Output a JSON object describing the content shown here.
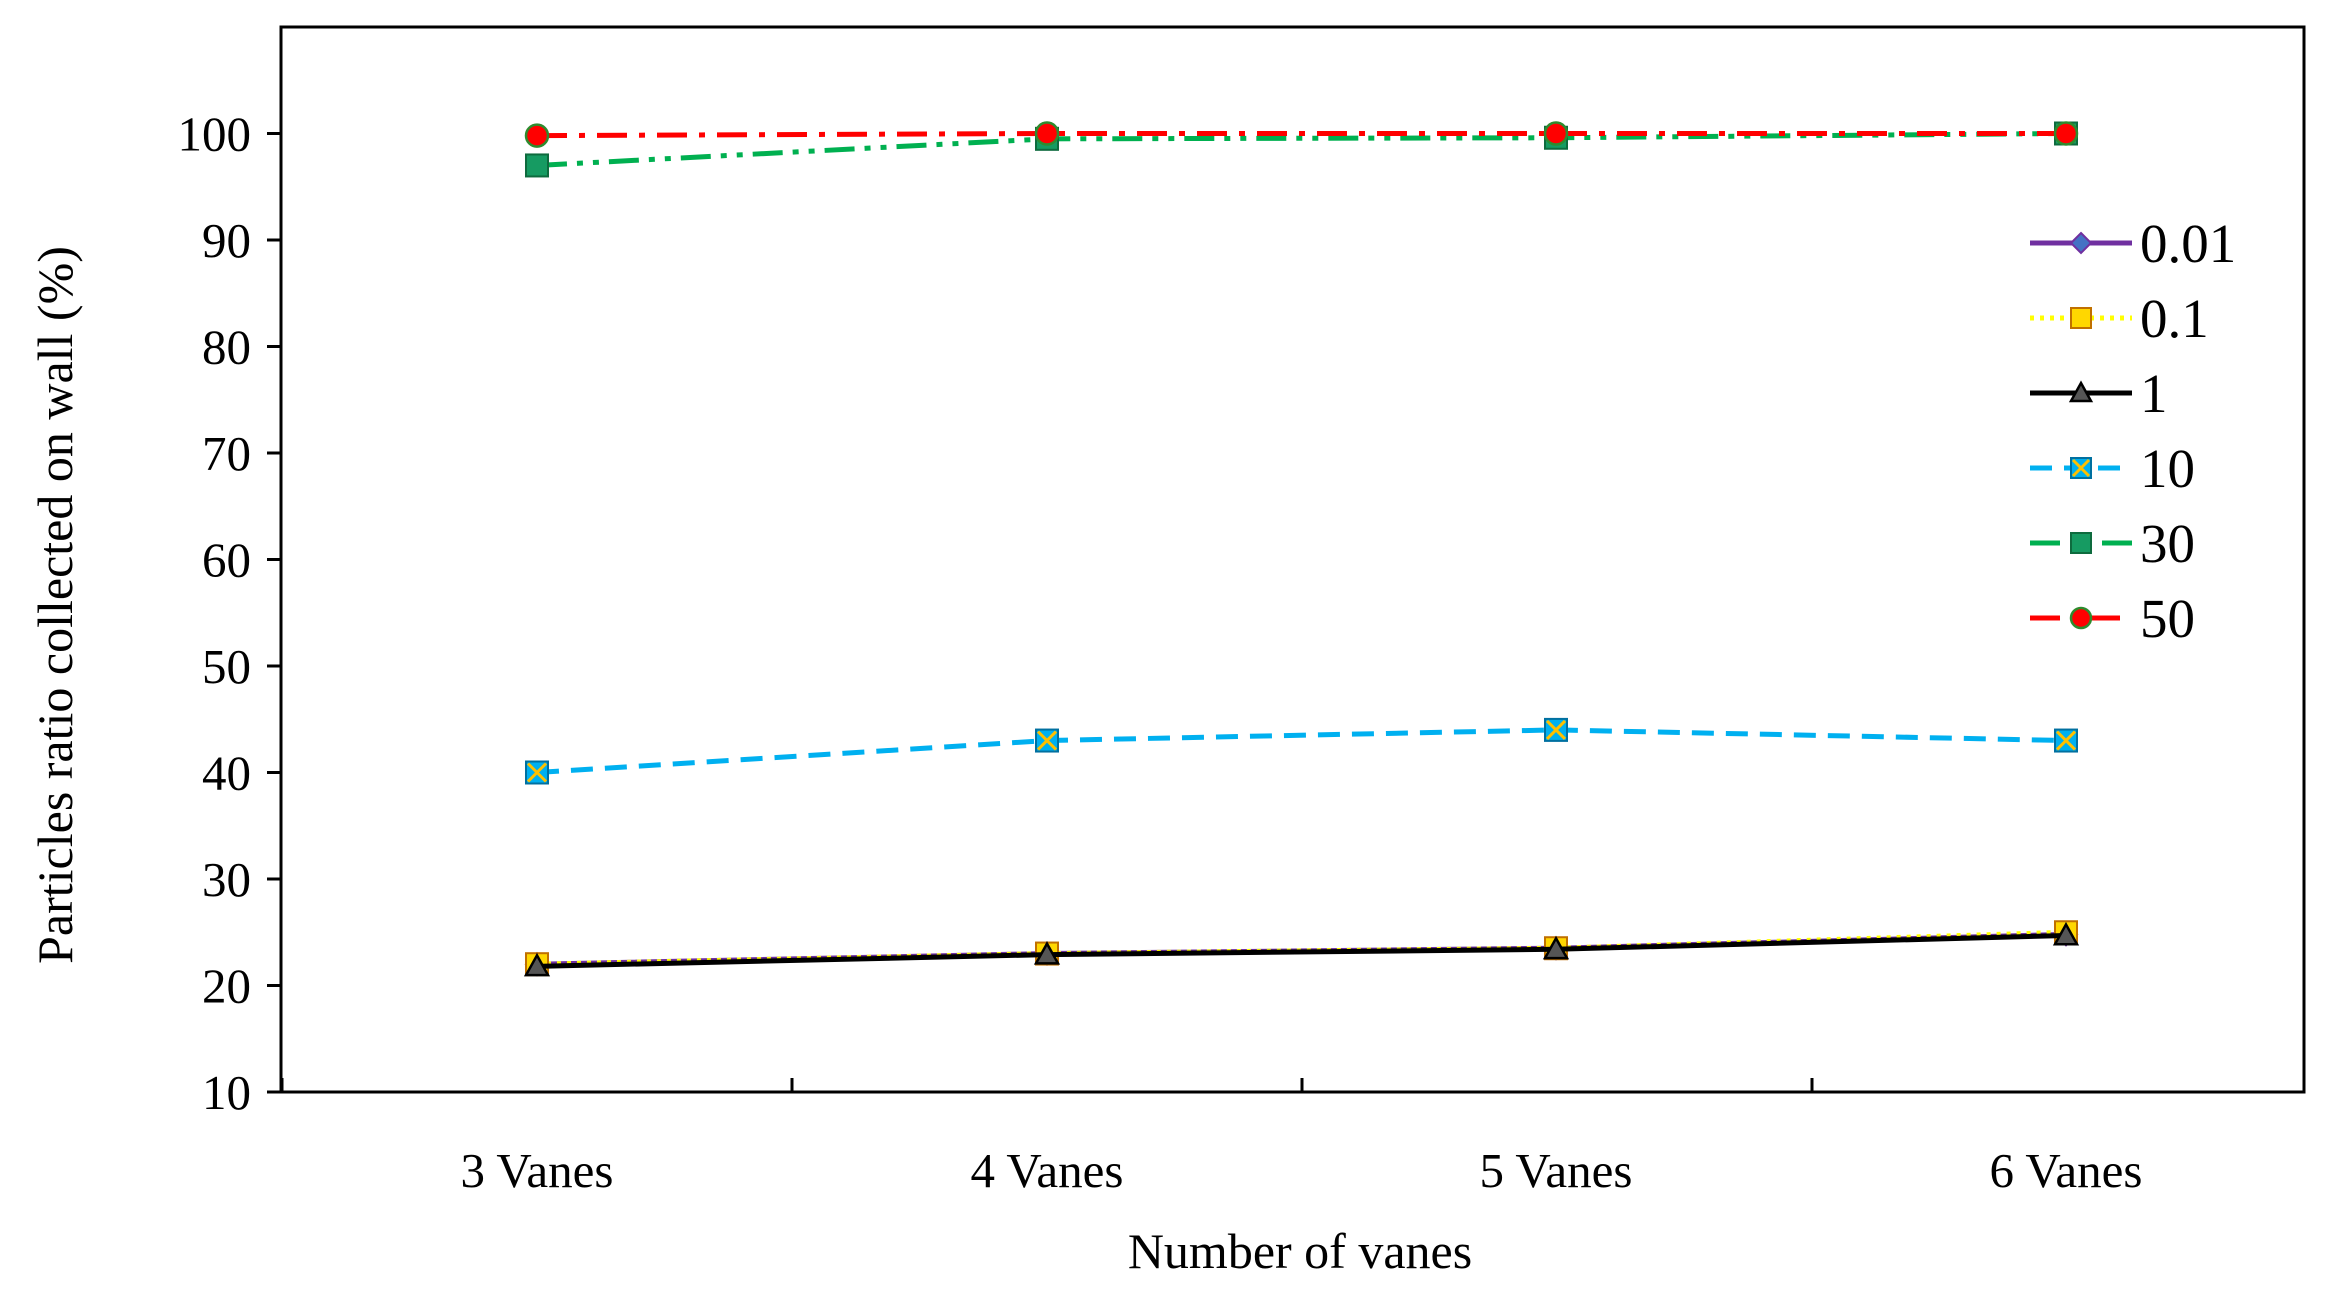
{
  "chart_data": {
    "type": "line",
    "title": "",
    "xlabel": "Number of vanes",
    "ylabel": "Particles ratio collected on wall (%)",
    "categories": [
      "3 Vanes",
      "4 Vanes",
      "5 Vanes",
      "6 Vanes"
    ],
    "ylim": [
      10,
      110
    ],
    "yticks": [
      10,
      20,
      30,
      40,
      50,
      60,
      70,
      80,
      90,
      100
    ],
    "grid": false,
    "legend_position": "right",
    "series": [
      {
        "name": "0.01",
        "values": [
          22.0,
          23.0,
          23.5,
          24.8
        ],
        "color": "#7030A0",
        "marker": "diamond",
        "marker_fill": "#4472C4",
        "dash": "solid"
      },
      {
        "name": "0.1",
        "values": [
          22.0,
          23.0,
          23.5,
          25.0
        ],
        "color": "#FFFF00",
        "marker": "square",
        "marker_fill": "#FFD700",
        "dash": "dotted"
      },
      {
        "name": "1",
        "values": [
          21.8,
          22.9,
          23.4,
          24.7
        ],
        "color": "#000000",
        "marker": "triangle",
        "marker_fill": "#000000",
        "dash": "solid"
      },
      {
        "name": "10",
        "values": [
          40.0,
          43.0,
          44.0,
          43.0
        ],
        "color": "#00B0F0",
        "marker": "x-square",
        "marker_fill": "#00B0F0",
        "dash": "dashed"
      },
      {
        "name": "30",
        "values": [
          97.0,
          99.5,
          99.6,
          100.0
        ],
        "color": "#00B050",
        "marker": "square",
        "marker_fill": "#169B62",
        "dash": "dash-dot-dot"
      },
      {
        "name": "50",
        "values": [
          99.8,
          100.0,
          100.0,
          100.0
        ],
        "color": "#FF0000",
        "marker": "circle",
        "marker_fill": "#FF0000",
        "dash": "dash-dot"
      }
    ]
  }
}
